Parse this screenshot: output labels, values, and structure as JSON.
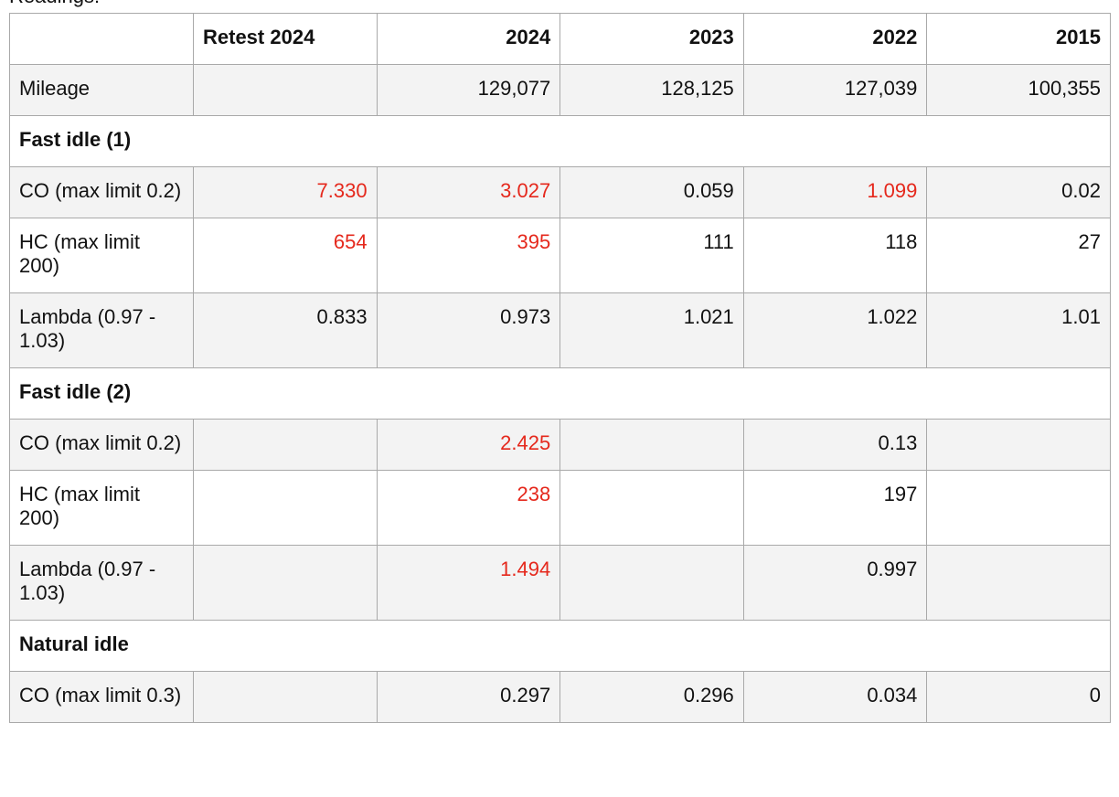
{
  "intro": "Readings:",
  "alert_color": "#e5281c",
  "table": {
    "header": [
      null,
      "Retest 2024",
      "2024",
      "2023",
      "2022",
      "2015"
    ],
    "rows": [
      {
        "label": "Mileage",
        "cells": [
          null,
          "129,077",
          "128,125",
          "127,039",
          "100,355"
        ],
        "alerts": [
          false,
          false,
          false,
          false,
          false
        ]
      },
      {
        "section": "Fast idle (1)"
      },
      {
        "label": "CO (max limit 0.2)",
        "cells": [
          "7.330",
          "3.027",
          "0.059",
          "1.099",
          "0.02"
        ],
        "alerts": [
          true,
          true,
          false,
          true,
          false
        ]
      },
      {
        "label": "HC (max limit 200)",
        "cells": [
          "654",
          "395",
          "111",
          "118",
          "27"
        ],
        "alerts": [
          true,
          true,
          false,
          false,
          false
        ]
      },
      {
        "label": "Lambda (0.97 - 1.03)",
        "cells": [
          "0.833",
          "0.973",
          "1.021",
          "1.022",
          "1.01"
        ],
        "alerts": [
          false,
          false,
          false,
          false,
          false
        ]
      },
      {
        "section": "Fast idle (2)"
      },
      {
        "label": "CO (max limit 0.2)",
        "cells": [
          null,
          "2.425",
          null,
          "0.13",
          null
        ],
        "alerts": [
          false,
          true,
          false,
          false,
          false
        ]
      },
      {
        "label": "HC (max limit 200)",
        "cells": [
          null,
          "238",
          null,
          "197",
          null
        ],
        "alerts": [
          false,
          true,
          false,
          false,
          false
        ]
      },
      {
        "label": "Lambda (0.97 - 1.03)",
        "cells": [
          null,
          "1.494",
          null,
          "0.997",
          null
        ],
        "alerts": [
          false,
          true,
          false,
          false,
          false
        ]
      },
      {
        "section": "Natural idle"
      },
      {
        "label": "CO (max limit 0.3)",
        "cells": [
          null,
          "0.297",
          "0.296",
          "0.034",
          "0"
        ],
        "alerts": [
          false,
          false,
          false,
          false,
          false
        ]
      }
    ]
  }
}
